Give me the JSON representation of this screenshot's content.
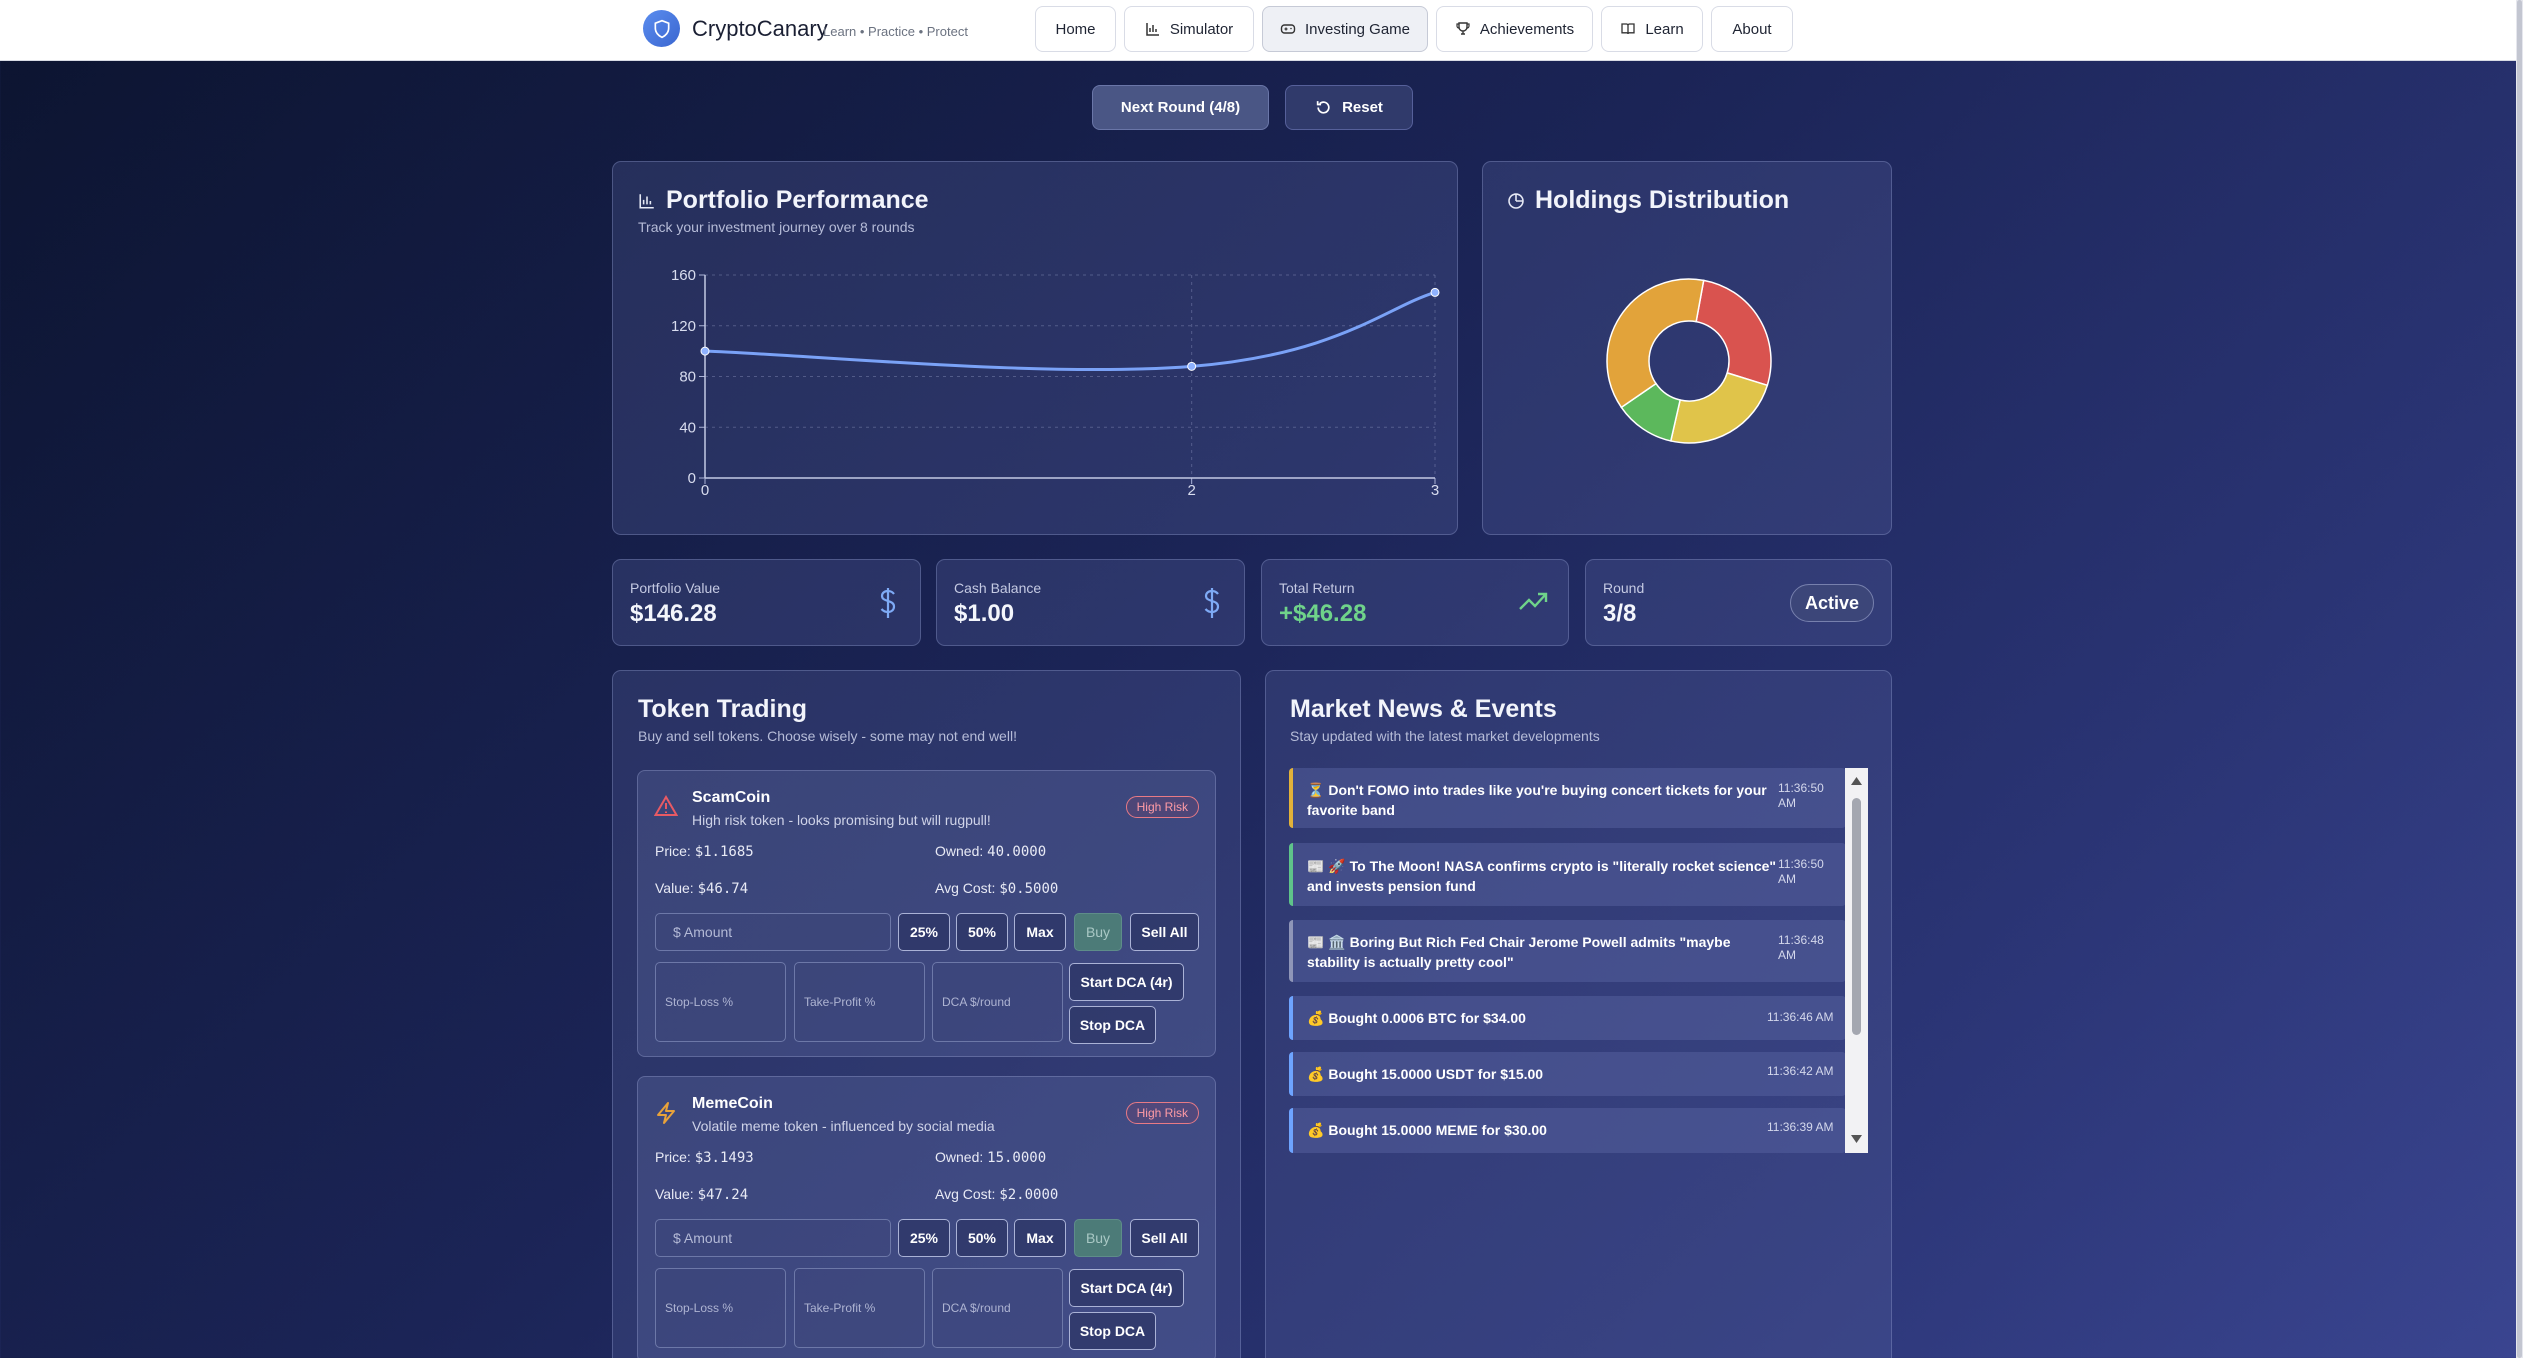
{
  "header": {
    "brand": "CryptoCanary",
    "tagline": "Learn • Practice • Protect",
    "nav": [
      {
        "label": "Home",
        "icon": "none",
        "active": false
      },
      {
        "label": "Simulator",
        "icon": "bar-chart-icon",
        "active": false
      },
      {
        "label": "Investing Game",
        "icon": "gamepad-icon",
        "active": true
      },
      {
        "label": "Achievements",
        "icon": "trophy-icon",
        "active": false
      },
      {
        "label": "Learn",
        "icon": "book-icon",
        "active": false
      },
      {
        "label": "About",
        "icon": "none",
        "active": false
      }
    ]
  },
  "controls": {
    "next_round": "Next Round (4/8)",
    "reset": "Reset"
  },
  "performance": {
    "title": "Portfolio Performance",
    "subtitle": "Track your investment journey over 8 rounds"
  },
  "holdings": {
    "title": "Holdings Distribution"
  },
  "chart_data": [
    {
      "type": "line",
      "x": [
        0,
        2,
        3
      ],
      "y": [
        100,
        88,
        146.28
      ],
      "xticks": [
        "0",
        "2",
        "3"
      ],
      "yticks": [
        "0",
        "40",
        "80",
        "120",
        "160"
      ],
      "ylim": [
        0,
        160
      ],
      "xlim": [
        0,
        3
      ],
      "color": "#7aa2f7",
      "grid": true
    },
    {
      "type": "pie",
      "donut": true,
      "slices": [
        {
          "value": 34.0,
          "color": "#d9534f"
        },
        {
          "value": 30.0,
          "color": "#e0c44a"
        },
        {
          "value": 15.0,
          "color": "#5cb85c"
        },
        {
          "value": 47.24,
          "color": "#e2a33a"
        }
      ]
    }
  ],
  "stats": {
    "portfolio_value": {
      "label": "Portfolio Value",
      "value": "$146.28"
    },
    "cash_balance": {
      "label": "Cash Balance",
      "value": "$1.00"
    },
    "total_return": {
      "label": "Total Return",
      "value": "+$46.28"
    },
    "round": {
      "label": "Round",
      "value": "3/8",
      "badge": "Active"
    }
  },
  "trading": {
    "title": "Token Trading",
    "subtitle": "Buy and sell tokens. Choose wisely - some may not end well!",
    "tokens": [
      {
        "name": "ScamCoin",
        "desc": "High risk token - looks promising but will rugpull!",
        "risk": "High Risk",
        "icon": "warning-triangle-icon",
        "price_label": "Price:",
        "price": "$1.1685",
        "owned_label": "Owned:",
        "owned": "40.0000",
        "value_label": "Value:",
        "value": "$46.74",
        "avg_label": "Avg Cost:",
        "avg": "$0.5000",
        "amount_placeholder": "$ Amount",
        "btn_25": "25%",
        "btn_50": "50%",
        "btn_max": "Max",
        "btn_buy": "Buy",
        "btn_sell_all": "Sell All",
        "stop_loss": "Stop-Loss %",
        "take_profit": "Take-Profit %",
        "dca": "DCA $/round",
        "start_dca": "Start DCA (4r)",
        "stop_dca": "Stop DCA"
      },
      {
        "name": "MemeCoin",
        "desc": "Volatile meme token - influenced by social media",
        "risk": "High Risk",
        "icon": "lightning-icon",
        "price_label": "Price:",
        "price": "$3.1493",
        "owned_label": "Owned:",
        "owned": "15.0000",
        "value_label": "Value:",
        "value": "$47.24",
        "avg_label": "Avg Cost:",
        "avg": "$2.0000",
        "amount_placeholder": "$ Amount",
        "btn_25": "25%",
        "btn_50": "50%",
        "btn_max": "Max",
        "btn_buy": "Buy",
        "btn_sell_all": "Sell All",
        "stop_loss": "Stop-Loss %",
        "take_profit": "Take-Profit %",
        "dca": "DCA $/round",
        "start_dca": "Start DCA (4r)",
        "stop_dca": "Stop DCA"
      }
    ]
  },
  "news": {
    "title": "Market News & Events",
    "subtitle": "Stay updated with the latest market developments",
    "items": [
      {
        "icon": "⏳",
        "text": "Don't FOMO into trades like you're buying concert tickets for your favorite band",
        "time": "11:36:50",
        "ampm": "AM",
        "color": "#e2b23a"
      },
      {
        "icon": "📰 🚀",
        "text": "To The Moon! NASA confirms crypto is \"literally rocket science\" and invests pension fund",
        "time": "11:36:50",
        "ampm": "AM",
        "color": "#5fc48a"
      },
      {
        "icon": "📰 🏛️",
        "text": "Boring But Rich Fed Chair Jerome Powell admits \"maybe stability is actually pretty cool\"",
        "time": "11:36:48",
        "ampm": "AM",
        "color": "#8f96b8"
      },
      {
        "icon": "💰",
        "text": "Bought 0.0006 BTC for $34.00",
        "time": "11:36:46 AM",
        "ampm": "",
        "color": "#6ea4ff"
      },
      {
        "icon": "💰",
        "text": "Bought 15.0000 USDT for $15.00",
        "time": "11:36:42 AM",
        "ampm": "",
        "color": "#6ea4ff"
      },
      {
        "icon": "💰",
        "text": "Bought 15.0000 MEME for $30.00",
        "time": "11:36:39 AM",
        "ampm": "",
        "color": "#6ea4ff"
      }
    ]
  }
}
